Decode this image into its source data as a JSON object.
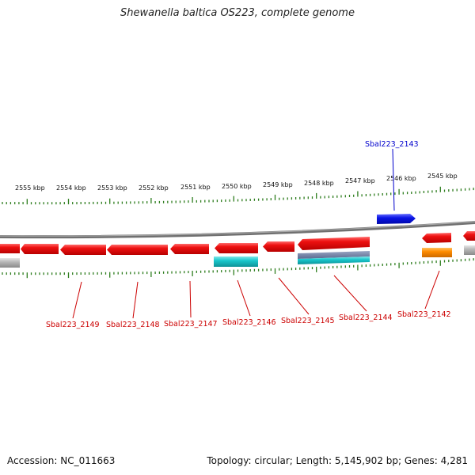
{
  "title": "Shewanella baltica OS223, complete genome",
  "accession": "Accession: NC_011663",
  "summary": "Topology: circular; Length: 5,145,902 bp; Genes: 4,281",
  "colors": {
    "backbone": "#808080",
    "tick": "#2e7d1e",
    "gene_red": "#ee1111",
    "gene_cyan": "#19c7cc",
    "gene_orange": "#ff8c00",
    "gene_blue": "#0a14e6",
    "gene_gray": "#b8b8b8",
    "label_red": "#cc0000",
    "label_blue": "#0000cc"
  },
  "scale_labels": [
    "2555 kbp",
    "2554 kbp",
    "2553 kbp",
    "2552 kbp",
    "2551 kbp",
    "2550 kbp",
    "2549 kbp",
    "2548 kbp",
    "2547 kbp",
    "2546 kbp",
    "2545 kbp"
  ],
  "gene_labels": [
    {
      "id": "Sbal223_2149",
      "color": "red"
    },
    {
      "id": "Sbal223_2148",
      "color": "red"
    },
    {
      "id": "Sbal223_2147",
      "color": "red"
    },
    {
      "id": "Sbal223_2146",
      "color": "red"
    },
    {
      "id": "Sbal223_2145",
      "color": "red"
    },
    {
      "id": "Sbal223_2144",
      "color": "red"
    },
    {
      "id": "Sbal223_2142",
      "color": "red"
    },
    {
      "id": "Sbal223_2143",
      "color": "blue"
    }
  ]
}
